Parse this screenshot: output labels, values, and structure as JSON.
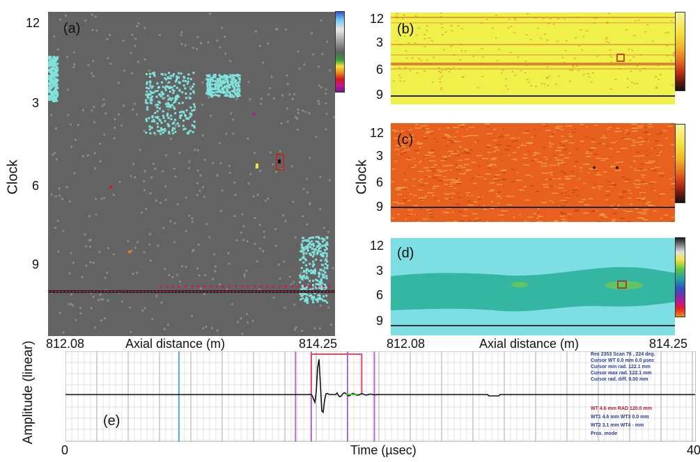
{
  "chart_data": [
    {
      "id": "a",
      "type": "heatmap",
      "panel_label": "(a)",
      "ylabel": "Clock",
      "yticks": [
        "12",
        "3",
        "6",
        "9"
      ],
      "xlabel": "Axial distance (m)",
      "xticks": [
        "812.08",
        "814.25"
      ],
      "xlim": [
        812.08,
        814.25
      ],
      "colors": {
        "background": "#636363",
        "clusters": "#7fe3dc",
        "noise": "#a3a3a3",
        "seam": "#d11a4a"
      }
    },
    {
      "id": "b",
      "type": "heatmap",
      "panel_label": "(b)",
      "yticks": [
        "12",
        "3",
        "6",
        "9"
      ],
      "colors": {
        "background": "#f0f04a",
        "stripe": "#d36a2a",
        "seam": "#222222"
      }
    },
    {
      "id": "c",
      "type": "heatmap",
      "panel_label": "(c)",
      "ylabel": "Clock",
      "yticks": [
        "12",
        "3",
        "6",
        "9"
      ],
      "colors": {
        "background": "#e8601e",
        "highlight": "#f3b24a",
        "seam": "#222222"
      }
    },
    {
      "id": "d",
      "type": "heatmap",
      "panel_label": "(d)",
      "yticks": [
        "12",
        "3",
        "6",
        "9"
      ],
      "xlabel": "Axial distance (m)",
      "xticks": [
        "812.08",
        "814.25"
      ],
      "xlim": [
        812.08,
        814.25
      ],
      "colors": {
        "outer": "#7ddfe3",
        "band": "#35b6a3",
        "spot": "#62c560",
        "seam": "#333333"
      }
    },
    {
      "id": "e",
      "type": "line",
      "panel_label": "(e)",
      "ylabel": "Amplitude (linear)",
      "xlabel": "Time (µsec)",
      "xticks": [
        "0",
        "40"
      ],
      "xlim": [
        0,
        40
      ],
      "markers": {
        "blue": [
          7.2
        ],
        "purple": [
          14.6,
          15.6,
          17.9,
          19.6
        ],
        "gate": {
          "start": 15.6,
          "end": 18.8
        }
      },
      "info_lines": [
        "Rec      2353 Scan    76  ,  224 deg.",
        "Cursor WT              0.0 mm  0.0 µsec",
        "Cursor min rad.   122.1  mm",
        "Cursor max rad.  122.1  mm",
        "Cursor rad. diff.      0.00  mm"
      ],
      "info_lines2": [
        "WT    4.6    mm  RAD  120.0  mm",
        "WT1   4.6    mm  WT3   0.0    mm",
        "WT2   3.1    mm  WT4   -       mm",
        "Prox.  mode"
      ]
    }
  ]
}
